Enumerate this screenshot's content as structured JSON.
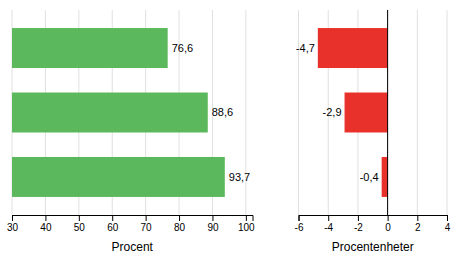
{
  "chart_data": [
    {
      "type": "bar",
      "orientation": "horizontal",
      "categories": [
        null,
        null,
        null
      ],
      "values": [
        76.6,
        88.6,
        93.7
      ],
      "value_labels": [
        "76,6",
        "88,6",
        "93,7"
      ],
      "data_labels": true,
      "color": "#5cb85c",
      "xlim": [
        30,
        102
      ],
      "xticks": [
        30,
        40,
        50,
        60,
        70,
        80,
        90,
        100
      ],
      "xlabel": "Procent",
      "grid": true,
      "tick_labels": "x"
    },
    {
      "type": "bar",
      "orientation": "horizontal",
      "categories": [
        null,
        null,
        null
      ],
      "values": [
        -4.7,
        -2.9,
        -0.4
      ],
      "value_labels": [
        "-4,7",
        "-2,9",
        "-0,4"
      ],
      "data_labels": true,
      "color": "#e8312a",
      "xlim": [
        -6,
        4
      ],
      "xticks": [
        -6,
        -4,
        -2,
        0,
        2,
        4
      ],
      "xlabel": "Procentenheter",
      "grid": true,
      "tick_labels": "x"
    }
  ]
}
